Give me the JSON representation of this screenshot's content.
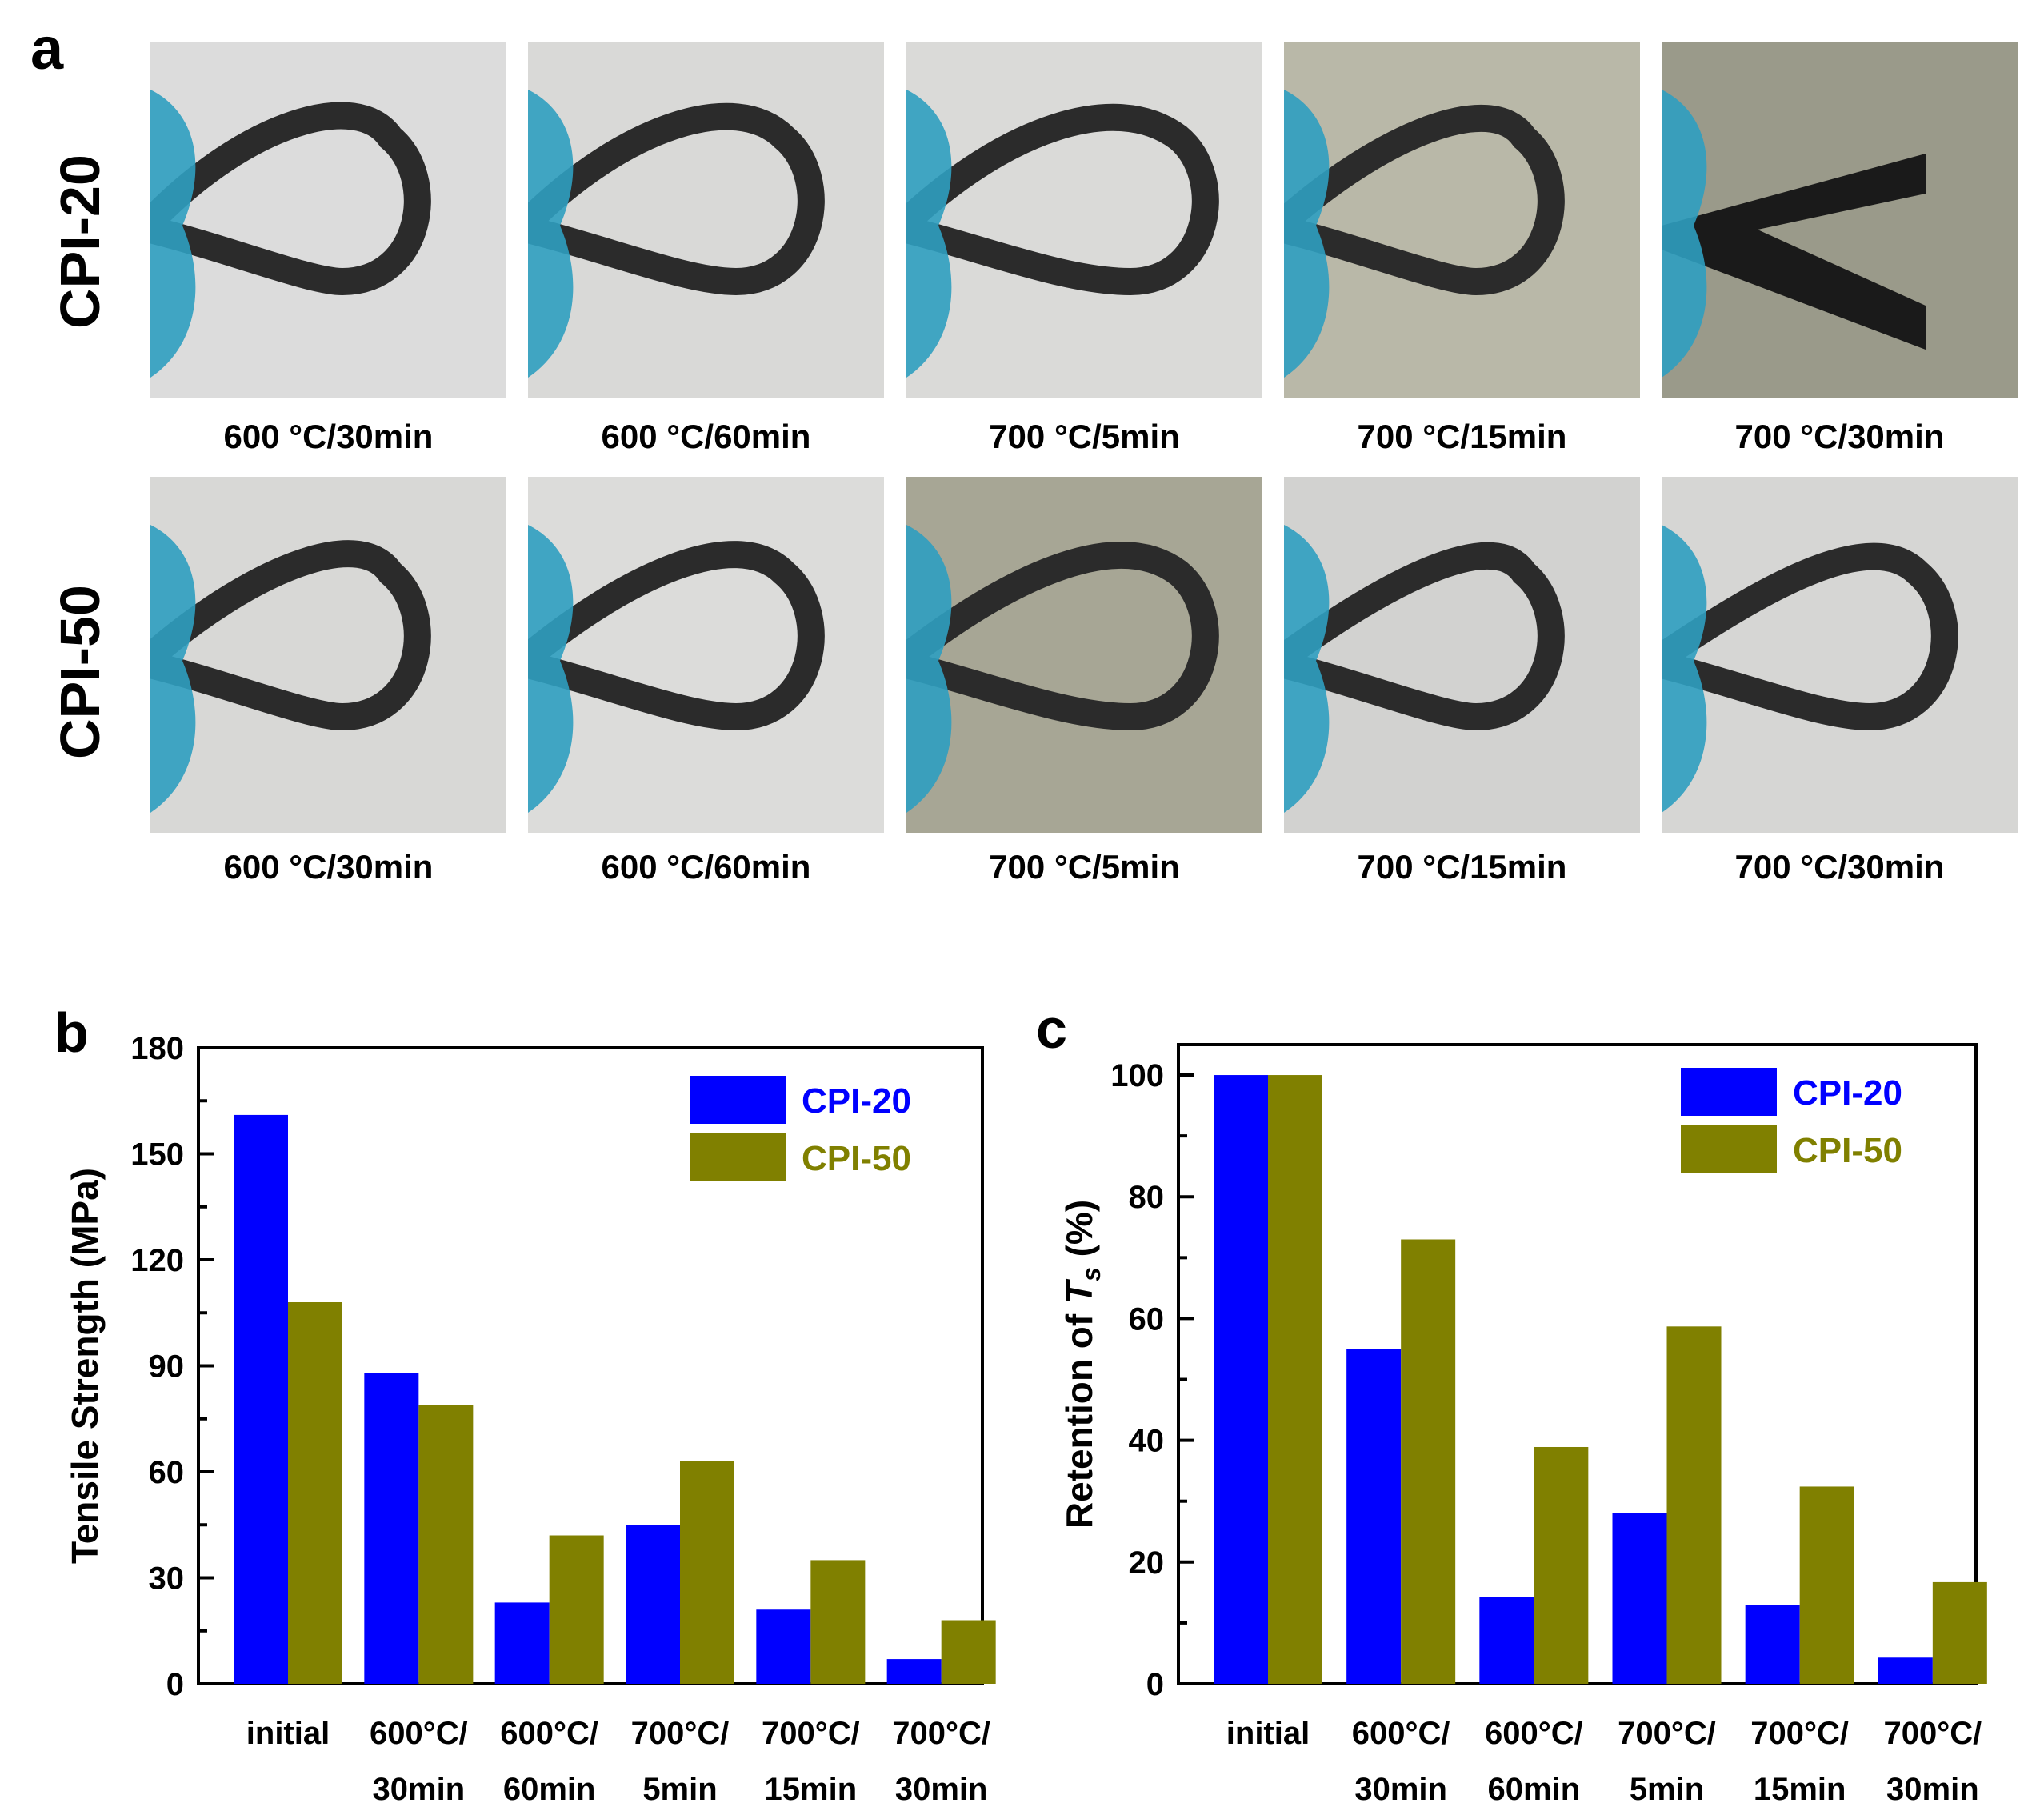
{
  "panel_a": {
    "letter": "a",
    "rows": [
      {
        "label": "CPI-20",
        "captions": [
          "600 °C/30min",
          "600 °C/60min",
          "700 °C/5min",
          "700 °C/15min",
          "700 °C/30min"
        ]
      },
      {
        "label": "CPI-50",
        "captions": [
          "600 °C/30min",
          "600 °C/60min",
          "700 °C/5min",
          "700 °C/15min",
          "700 °C/30min"
        ]
      }
    ]
  },
  "colors": {
    "cpi20": "#0000ff",
    "cpi50": "#808000",
    "axis": "#000000"
  },
  "chart_data": [
    {
      "panel": "b",
      "type": "bar",
      "title": "",
      "xlabel": "",
      "ylabel": "Tensile Strength (MPa)",
      "ylim": [
        0,
        180
      ],
      "yticks": [
        0,
        30,
        60,
        90,
        120,
        150,
        180
      ],
      "categories": [
        [
          "initial"
        ],
        [
          "600°C/",
          "30min"
        ],
        [
          "600°C/",
          "60min"
        ],
        [
          "700°C/",
          "5min"
        ],
        [
          "700°C/",
          "15min"
        ],
        [
          "700°C/",
          "30min"
        ]
      ],
      "series": [
        {
          "name": "CPI-20",
          "values": [
            161,
            88,
            23,
            45,
            21,
            7
          ]
        },
        {
          "name": "CPI-50",
          "values": [
            108,
            79,
            42,
            63,
            35,
            18
          ]
        }
      ],
      "legend": "top-right"
    },
    {
      "panel": "c",
      "type": "bar",
      "title": "",
      "xlabel": "",
      "ylabel": "Retention of Ts (%)",
      "ylim": [
        0,
        105
      ],
      "yticks": [
        0,
        20,
        40,
        60,
        80,
        100
      ],
      "categories": [
        [
          "initial"
        ],
        [
          "600°C/",
          "30min"
        ],
        [
          "600°C/",
          "60min"
        ],
        [
          "700°C/",
          "5min"
        ],
        [
          "700°C/",
          "15min"
        ],
        [
          "700°C/",
          "30min"
        ]
      ],
      "series": [
        {
          "name": "CPI-20",
          "values": [
            100,
            55,
            14.3,
            28,
            13,
            4.3
          ]
        },
        {
          "name": "CPI-50",
          "values": [
            100,
            73,
            38.9,
            58.7,
            32.4,
            16.7
          ]
        }
      ],
      "legend": "top-right"
    }
  ]
}
